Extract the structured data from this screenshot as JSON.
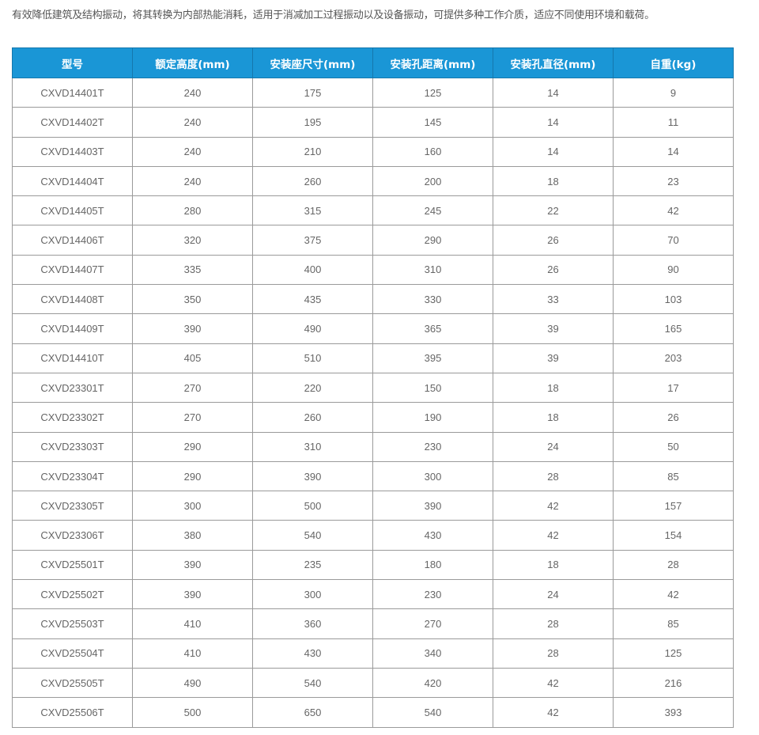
{
  "intro": "有效降低建筑及结构振动，将其转换为内部热能消耗，适用于消减加工过程振动以及设备振动，可提供多种工作介质，适应不同使用环境和载荷。",
  "colors": {
    "header_bg": "#1a96d6",
    "header_text": "#ffffff",
    "cell_text": "#666666",
    "border": "#9a9a9a"
  },
  "table": {
    "headers": [
      "型号",
      "额定高度(mm)",
      "安装座尺寸(mm)",
      "安装孔距离(mm)",
      "安装孔直径(mm)",
      "自重(kg)"
    ],
    "rows": [
      [
        "CXVD14401T",
        "240",
        "175",
        "125",
        "14",
        "9"
      ],
      [
        "CXVD14402T",
        "240",
        "195",
        "145",
        "14",
        "11"
      ],
      [
        "CXVD14403T",
        "240",
        "210",
        "160",
        "14",
        "14"
      ],
      [
        "CXVD14404T",
        "240",
        "260",
        "200",
        "18",
        "23"
      ],
      [
        "CXVD14405T",
        "280",
        "315",
        "245",
        "22",
        "42"
      ],
      [
        "CXVD14406T",
        "320",
        "375",
        "290",
        "26",
        "70"
      ],
      [
        "CXVD14407T",
        "335",
        "400",
        "310",
        "26",
        "90"
      ],
      [
        "CXVD14408T",
        "350",
        "435",
        "330",
        "33",
        "103"
      ],
      [
        "CXVD14409T",
        "390",
        "490",
        "365",
        "39",
        "165"
      ],
      [
        "CXVD14410T",
        "405",
        "510",
        "395",
        "39",
        "203"
      ],
      [
        "CXVD23301T",
        "270",
        "220",
        "150",
        "18",
        "17"
      ],
      [
        "CXVD23302T",
        "270",
        "260",
        "190",
        "18",
        "26"
      ],
      [
        "CXVD23303T",
        "290",
        "310",
        "230",
        "24",
        "50"
      ],
      [
        "CXVD23304T",
        "290",
        "390",
        "300",
        "28",
        "85"
      ],
      [
        "CXVD23305T",
        "300",
        "500",
        "390",
        "42",
        "157"
      ],
      [
        "CXVD23306T",
        "380",
        "540",
        "430",
        "42",
        "154"
      ],
      [
        "CXVD25501T",
        "390",
        "235",
        "180",
        "18",
        "28"
      ],
      [
        "CXVD25502T",
        "390",
        "300",
        "230",
        "24",
        "42"
      ],
      [
        "CXVD25503T",
        "410",
        "360",
        "270",
        "28",
        "85"
      ],
      [
        "CXVD25504T",
        "410",
        "430",
        "340",
        "28",
        "125"
      ],
      [
        "CXVD25505T",
        "490",
        "540",
        "420",
        "42",
        "216"
      ],
      [
        "CXVD25506T",
        "500",
        "650",
        "540",
        "42",
        "393"
      ]
    ]
  }
}
